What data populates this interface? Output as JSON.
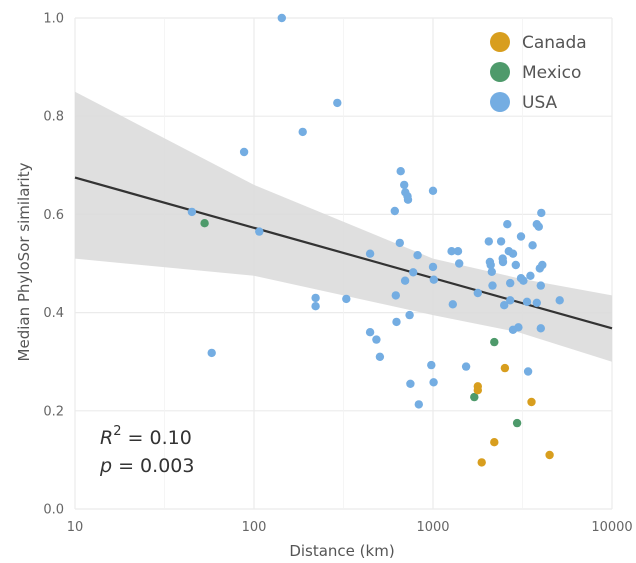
{
  "chart_data": {
    "type": "scatter",
    "title": "",
    "xlabel": "Distance (km)",
    "ylabel": "Median PhyloSor similarity",
    "xscale": "log",
    "xlim": [
      10,
      10000
    ],
    "ylim": [
      0.0,
      1.0
    ],
    "x_ticks": [
      10,
      100,
      1000,
      10000
    ],
    "x_tick_labels": [
      "10",
      "100",
      "1000",
      "10000"
    ],
    "y_ticks": [
      0.0,
      0.2,
      0.4,
      0.6,
      0.8,
      1.0
    ],
    "y_tick_labels": [
      "0.0",
      "0.2",
      "0.4",
      "0.6",
      "0.8",
      "1.0"
    ],
    "grid": true,
    "legend": {
      "placement": "top-right",
      "entries": [
        {
          "name": "Canada",
          "color": "#D89E1E"
        },
        {
          "name": "Mexico",
          "color": "#4E9A6B"
        },
        {
          "name": "USA",
          "color": "#74ADE2"
        }
      ]
    },
    "annotations": {
      "r2_label": "R",
      "r2_sup": "2",
      "r2_value": " = 0.10",
      "p_label": "p",
      "p_value": " = 0.003"
    },
    "regression": {
      "line": [
        [
          10,
          0.675
        ],
        [
          10000,
          0.368
        ]
      ],
      "ci_upper": [
        [
          10,
          0.85
        ],
        [
          100,
          0.66
        ],
        [
          1000,
          0.51
        ],
        [
          3000,
          0.47
        ],
        [
          10000,
          0.435
        ]
      ],
      "ci_lower": [
        [
          10,
          0.51
        ],
        [
          100,
          0.475
        ],
        [
          1000,
          0.395
        ],
        [
          3000,
          0.36
        ],
        [
          10000,
          0.3
        ]
      ],
      "line_color": "#333333",
      "band_color": "#dcdcdc"
    },
    "series": [
      {
        "name": "Canada",
        "color": "#D89E1E",
        "points": [
          [
            1780,
            0.25
          ],
          [
            1780,
            0.242
          ],
          [
            1870,
            0.095
          ],
          [
            2200,
            0.136
          ],
          [
            2520,
            0.287
          ],
          [
            3550,
            0.218
          ],
          [
            4480,
            0.11
          ]
        ]
      },
      {
        "name": "Mexico",
        "color": "#4E9A6B",
        "points": [
          [
            53,
            0.582
          ],
          [
            1700,
            0.228
          ],
          [
            2200,
            0.34
          ],
          [
            2950,
            0.175
          ]
        ]
      },
      {
        "name": "USA",
        "color": "#74ADE2",
        "points": [
          [
            143,
            1.0
          ],
          [
            292,
            0.827
          ],
          [
            187,
            0.768
          ],
          [
            88,
            0.727
          ],
          [
            45,
            0.605
          ],
          [
            107,
            0.565
          ],
          [
            58,
            0.318
          ],
          [
            221,
            0.43
          ],
          [
            221,
            0.413
          ],
          [
            328,
            0.428
          ],
          [
            445,
            0.52
          ],
          [
            445,
            0.36
          ],
          [
            483,
            0.345
          ],
          [
            505,
            0.31
          ],
          [
            660,
            0.688
          ],
          [
            690,
            0.66
          ],
          [
            700,
            0.645
          ],
          [
            720,
            0.637
          ],
          [
            725,
            0.63
          ],
          [
            612,
            0.607
          ],
          [
            652,
            0.542
          ],
          [
            620,
            0.435
          ],
          [
            625,
            0.381
          ],
          [
            698,
            0.465
          ],
          [
            740,
            0.395
          ],
          [
            775,
            0.482
          ],
          [
            820,
            0.517
          ],
          [
            1000,
            0.648
          ],
          [
            1000,
            0.493
          ],
          [
            1010,
            0.467
          ],
          [
            748,
            0.255
          ],
          [
            833,
            0.213
          ],
          [
            978,
            0.293
          ],
          [
            1008,
            0.258
          ],
          [
            1270,
            0.525
          ],
          [
            1380,
            0.525
          ],
          [
            1400,
            0.5
          ],
          [
            1290,
            0.417
          ],
          [
            1530,
            0.29
          ],
          [
            1780,
            0.44
          ],
          [
            2050,
            0.545
          ],
          [
            2080,
            0.503
          ],
          [
            2130,
            0.483
          ],
          [
            2150,
            0.455
          ],
          [
            2100,
            0.497
          ],
          [
            2400,
            0.545
          ],
          [
            2450,
            0.51
          ],
          [
            2460,
            0.503
          ],
          [
            2600,
            0.58
          ],
          [
            2650,
            0.525
          ],
          [
            2700,
            0.46
          ],
          [
            2800,
            0.52
          ],
          [
            2900,
            0.497
          ],
          [
            3000,
            0.37
          ],
          [
            3100,
            0.555
          ],
          [
            3100,
            0.47
          ],
          [
            3200,
            0.465
          ],
          [
            3350,
            0.422
          ],
          [
            3400,
            0.28
          ],
          [
            3500,
            0.475
          ],
          [
            3600,
            0.537
          ],
          [
            3800,
            0.58
          ],
          [
            3900,
            0.575
          ],
          [
            3950,
            0.49
          ],
          [
            4000,
            0.455
          ],
          [
            4030,
            0.603
          ],
          [
            4080,
            0.497
          ],
          [
            3800,
            0.42
          ],
          [
            4000,
            0.368
          ],
          [
            2700,
            0.425
          ],
          [
            2500,
            0.415
          ],
          [
            2800,
            0.365
          ],
          [
            5100,
            0.425
          ]
        ]
      }
    ]
  }
}
